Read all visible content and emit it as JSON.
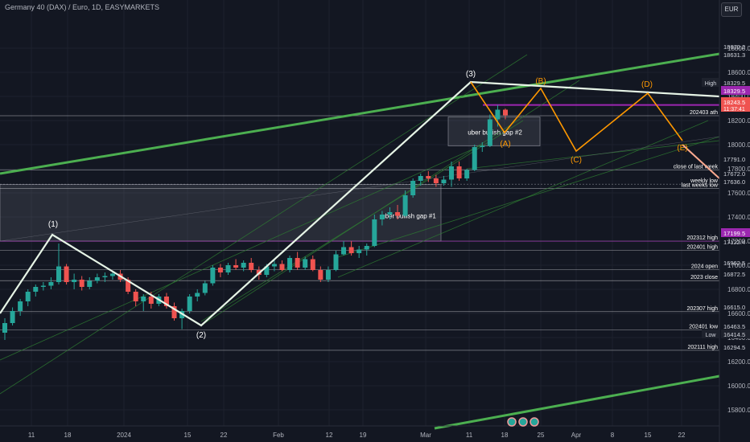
{
  "header": {
    "title": "Germany 40 (DAX) / Euro, 1D, EASYMARKETS",
    "currency": "EUR"
  },
  "chart_data": {
    "type": "candlestick",
    "symbol": "Germany 40 (DAX) / Euro",
    "interval": "1D",
    "broker": "EASYMARKETS",
    "currency": "EUR",
    "y_ticks": [
      15800,
      16000,
      16200,
      16400,
      16600,
      16800,
      17000,
      17200,
      17400,
      17600,
      17800,
      18000,
      18200,
      18400,
      18600,
      18800
    ],
    "y_tick_labels": [
      "15800.0",
      "16000.0",
      "16200.0",
      "16400.0",
      "16600.0",
      "16800.0",
      "17000.0",
      "17200.0",
      "17400.0",
      "17600.0",
      "17800.0",
      "18000.0",
      "18200.0",
      "18400.0",
      "18600.0",
      "18800.0"
    ],
    "x_tick_labels": [
      "11",
      "18",
      "2024",
      "15",
      "22",
      "Feb",
      "12",
      "19",
      "Mar",
      "11",
      "18",
      "25",
      "Apr",
      "8",
      "15",
      "22"
    ],
    "price_labels": [
      {
        "value": "18670.2",
        "style": "plain"
      },
      {
        "value": "18631.3",
        "style": "plain"
      },
      {
        "value": "18329.5",
        "style": "plain",
        "tag": "High"
      },
      {
        "value": "18329.5",
        "style": "purple"
      },
      {
        "value": "18243.5",
        "style": "red",
        "sub": "11:37:41"
      },
      {
        "value": "17791.0",
        "style": "plain"
      },
      {
        "value": "17672.0",
        "style": "plain"
      },
      {
        "value": "17636.0",
        "style": "plain"
      },
      {
        "value": "17199.5",
        "style": "purple"
      },
      {
        "value": "17122.4",
        "style": "plain"
      },
      {
        "value": "16962.5",
        "style": "plain"
      },
      {
        "value": "16872.5",
        "style": "plain"
      },
      {
        "value": "16615.0",
        "style": "plain"
      },
      {
        "value": "16463.5",
        "style": "plain"
      },
      {
        "value": "16414.5",
        "style": "teal",
        "tag": "Low"
      },
      {
        "value": "16294.5",
        "style": "plain"
      }
    ],
    "level_labels": [
      "202403 ath",
      "close of last week",
      "weekly low",
      "last weeks low",
      "202312 high",
      "202401 high",
      "2024 open",
      "2023 close",
      "202307 high",
      "202401 low",
      "202111 high"
    ],
    "wave_labels": [
      "(1)",
      "(2)",
      "(3)",
      "(A)",
      "(B)",
      "(C)",
      "(D)",
      "(E)"
    ],
    "box_labels": [
      "uber bullish gap #1",
      "uber bullish gap #2"
    ],
    "candles": [
      {
        "o": 16440,
        "h": 16560,
        "l": 16380,
        "c": 16520
      },
      {
        "o": 16520,
        "h": 16650,
        "l": 16500,
        "c": 16620
      },
      {
        "o": 16620,
        "h": 16720,
        "l": 16580,
        "c": 16700
      },
      {
        "o": 16700,
        "h": 16800,
        "l": 16660,
        "c": 16780
      },
      {
        "o": 16780,
        "h": 16840,
        "l": 16740,
        "c": 16820
      },
      {
        "o": 16820,
        "h": 16860,
        "l": 16790,
        "c": 16830
      },
      {
        "o": 16830,
        "h": 16900,
        "l": 16800,
        "c": 16860
      },
      {
        "o": 16860,
        "h": 17180,
        "l": 16840,
        "c": 16990
      },
      {
        "o": 16990,
        "h": 17010,
        "l": 16840,
        "c": 16860
      },
      {
        "o": 16860,
        "h": 16930,
        "l": 16800,
        "c": 16880
      },
      {
        "o": 16880,
        "h": 16910,
        "l": 16790,
        "c": 16820
      },
      {
        "o": 16820,
        "h": 16900,
        "l": 16800,
        "c": 16870
      },
      {
        "o": 16870,
        "h": 16930,
        "l": 16850,
        "c": 16900
      },
      {
        "o": 16900,
        "h": 16940,
        "l": 16860,
        "c": 16910
      },
      {
        "o": 16910,
        "h": 16950,
        "l": 16880,
        "c": 16930
      },
      {
        "o": 16930,
        "h": 16960,
        "l": 16860,
        "c": 16880
      },
      {
        "o": 16880,
        "h": 16900,
        "l": 16760,
        "c": 16780
      },
      {
        "o": 16780,
        "h": 16800,
        "l": 16660,
        "c": 16700
      },
      {
        "o": 16700,
        "h": 16760,
        "l": 16620,
        "c": 16740
      },
      {
        "o": 16740,
        "h": 16780,
        "l": 16640,
        "c": 16680
      },
      {
        "o": 16680,
        "h": 16760,
        "l": 16660,
        "c": 16740
      },
      {
        "o": 16740,
        "h": 16770,
        "l": 16640,
        "c": 16660
      },
      {
        "o": 16660,
        "h": 16690,
        "l": 16540,
        "c": 16560
      },
      {
        "o": 16560,
        "h": 16640,
        "l": 16470,
        "c": 16620
      },
      {
        "o": 16620,
        "h": 16760,
        "l": 16600,
        "c": 16740
      },
      {
        "o": 16740,
        "h": 16800,
        "l": 16700,
        "c": 16770
      },
      {
        "o": 16770,
        "h": 16870,
        "l": 16750,
        "c": 16850
      },
      {
        "o": 16850,
        "h": 17000,
        "l": 16830,
        "c": 16980
      },
      {
        "o": 16980,
        "h": 17010,
        "l": 16900,
        "c": 16940
      },
      {
        "o": 16940,
        "h": 17020,
        "l": 16920,
        "c": 17000
      },
      {
        "o": 17000,
        "h": 17050,
        "l": 16960,
        "c": 16980
      },
      {
        "o": 16980,
        "h": 17040,
        "l": 16950,
        "c": 17020
      },
      {
        "o": 17020,
        "h": 17060,
        "l": 16940,
        "c": 16960
      },
      {
        "o": 16960,
        "h": 16990,
        "l": 16880,
        "c": 16920
      },
      {
        "o": 16920,
        "h": 17010,
        "l": 16900,
        "c": 16990
      },
      {
        "o": 16990,
        "h": 17040,
        "l": 16950,
        "c": 17010
      },
      {
        "o": 17010,
        "h": 17040,
        "l": 16950,
        "c": 16960
      },
      {
        "o": 16960,
        "h": 17080,
        "l": 16940,
        "c": 17060
      },
      {
        "o": 17060,
        "h": 17110,
        "l": 16960,
        "c": 16980
      },
      {
        "o": 16980,
        "h": 17070,
        "l": 16960,
        "c": 17050
      },
      {
        "o": 17050,
        "h": 17080,
        "l": 16950,
        "c": 16960
      },
      {
        "o": 16960,
        "h": 16990,
        "l": 16860,
        "c": 16880
      },
      {
        "o": 16880,
        "h": 16990,
        "l": 16860,
        "c": 16960
      },
      {
        "o": 16960,
        "h": 17120,
        "l": 16950,
        "c": 17090
      },
      {
        "o": 17090,
        "h": 17200,
        "l": 17080,
        "c": 17150
      },
      {
        "o": 17150,
        "h": 17200,
        "l": 17080,
        "c": 17100
      },
      {
        "o": 17100,
        "h": 17160,
        "l": 17060,
        "c": 17130
      },
      {
        "o": 17130,
        "h": 17180,
        "l": 17080,
        "c": 17160
      },
      {
        "o": 17160,
        "h": 17420,
        "l": 17150,
        "c": 17380
      },
      {
        "o": 17380,
        "h": 17450,
        "l": 17330,
        "c": 17420
      },
      {
        "o": 17420,
        "h": 17480,
        "l": 17380,
        "c": 17440
      },
      {
        "o": 17440,
        "h": 17500,
        "l": 17380,
        "c": 17410
      },
      {
        "o": 17410,
        "h": 17620,
        "l": 17400,
        "c": 17580
      },
      {
        "o": 17580,
        "h": 17720,
        "l": 17560,
        "c": 17700
      },
      {
        "o": 17700,
        "h": 17760,
        "l": 17660,
        "c": 17740
      },
      {
        "o": 17740,
        "h": 17780,
        "l": 17690,
        "c": 17720
      },
      {
        "o": 17720,
        "h": 17750,
        "l": 17650,
        "c": 17680
      },
      {
        "o": 17680,
        "h": 17740,
        "l": 17660,
        "c": 17710
      },
      {
        "o": 17710,
        "h": 17860,
        "l": 17650,
        "c": 17820
      },
      {
        "o": 17820,
        "h": 17860,
        "l": 17700,
        "c": 17720
      },
      {
        "o": 17720,
        "h": 17800,
        "l": 17700,
        "c": 17790
      },
      {
        "o": 17790,
        "h": 18000,
        "l": 17780,
        "c": 17980
      },
      {
        "o": 17980,
        "h": 18020,
        "l": 17940,
        "c": 17990
      },
      {
        "o": 17990,
        "h": 18250,
        "l": 17980,
        "c": 18210
      },
      {
        "o": 18210,
        "h": 18329,
        "l": 18150,
        "c": 18290
      },
      {
        "o": 18290,
        "h": 18300,
        "l": 18210,
        "c": 18243
      }
    ]
  }
}
